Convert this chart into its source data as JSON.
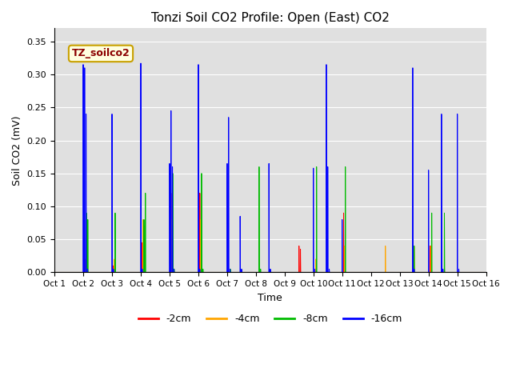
{
  "title": "Tonzi Soil CO2 Profile: Open (East) CO2",
  "ylabel": "Soil CO2 (mV)",
  "xlabel": "Time",
  "watermark_text": "TZ_soilco2",
  "ylim": [
    0.0,
    0.37
  ],
  "yticks": [
    0.0,
    0.05,
    0.1,
    0.15,
    0.2,
    0.25,
    0.3,
    0.35
  ],
  "colors": {
    "-2cm": "#ff0000",
    "-4cm": "#ffa500",
    "-8cm": "#00bb00",
    "-16cm": "#0000ff"
  },
  "legend_labels": [
    "-2cm",
    "-4cm",
    "-8cm",
    "-16cm"
  ],
  "axes_facecolor": "#e0e0e0",
  "tick_labels": [
    "Oct 1",
    "Oct 2",
    "Oct 3",
    "Oct 4",
    "Oct 5",
    "Oct 6",
    "Oct 7",
    "Oct 8",
    "Oct 9",
    "Oct 10",
    "Oct 11",
    "Oct 12",
    "Oct 13",
    "Oct 14",
    "Oct 15",
    "Oct 16"
  ],
  "num_points": 3000,
  "xlim": [
    1.0,
    16.0
  ],
  "spikes": {
    "-2cm": [
      [
        2.05,
        0.01
      ],
      [
        2.1,
        0.01
      ],
      [
        2.15,
        0.005
      ],
      [
        3.05,
        0.01
      ],
      [
        3.1,
        0.005
      ],
      [
        4.05,
        0.045
      ],
      [
        4.1,
        0.04
      ],
      [
        5.05,
        0.12
      ],
      [
        5.1,
        0.11
      ],
      [
        5.15,
        0.005
      ],
      [
        6.05,
        0.12
      ],
      [
        6.1,
        0.005
      ],
      [
        9.5,
        0.04
      ],
      [
        9.55,
        0.035
      ],
      [
        11.05,
        0.09
      ],
      [
        11.1,
        0.005
      ],
      [
        14.05,
        0.04
      ],
      [
        14.55,
        0.005
      ]
    ],
    "-4cm": [
      [
        2.08,
        0.02
      ],
      [
        2.13,
        0.015
      ],
      [
        3.08,
        0.02
      ],
      [
        4.08,
        0.08
      ],
      [
        4.13,
        0.07
      ],
      [
        5.08,
        0.08
      ],
      [
        5.13,
        0.005
      ],
      [
        6.08,
        0.08
      ],
      [
        6.13,
        0.005
      ],
      [
        10.08,
        0.02
      ],
      [
        11.08,
        0.04
      ],
      [
        12.5,
        0.04
      ],
      [
        13.5,
        0.04
      ],
      [
        14.08,
        0.04
      ]
    ],
    "-8cm": [
      [
        2.11,
        0.09
      ],
      [
        2.16,
        0.08
      ],
      [
        3.11,
        0.09
      ],
      [
        4.11,
        0.08
      ],
      [
        4.16,
        0.12
      ],
      [
        5.11,
        0.15
      ],
      [
        5.16,
        0.005
      ],
      [
        6.11,
        0.15
      ],
      [
        6.16,
        0.005
      ],
      [
        7.11,
        0.005
      ],
      [
        8.11,
        0.16
      ],
      [
        8.16,
        0.005
      ],
      [
        10.11,
        0.16
      ],
      [
        11.11,
        0.16
      ],
      [
        13.5,
        0.04
      ],
      [
        14.11,
        0.09
      ],
      [
        14.55,
        0.09
      ]
    ],
    "-16cm": [
      [
        2.0,
        0.315
      ],
      [
        2.05,
        0.31
      ],
      [
        2.1,
        0.24
      ],
      [
        2.15,
        0.005
      ],
      [
        3.0,
        0.24
      ],
      [
        3.05,
        0.005
      ],
      [
        4.0,
        0.317
      ],
      [
        4.05,
        0.005
      ],
      [
        5.0,
        0.165
      ],
      [
        5.05,
        0.245
      ],
      [
        5.1,
        0.16
      ],
      [
        5.15,
        0.005
      ],
      [
        6.0,
        0.315
      ],
      [
        6.05,
        0.005
      ],
      [
        7.0,
        0.165
      ],
      [
        7.05,
        0.235
      ],
      [
        7.1,
        0.005
      ],
      [
        7.45,
        0.085
      ],
      [
        7.5,
        0.005
      ],
      [
        8.45,
        0.165
      ],
      [
        8.5,
        0.005
      ],
      [
        10.0,
        0.158
      ],
      [
        10.05,
        0.005
      ],
      [
        10.45,
        0.315
      ],
      [
        10.5,
        0.16
      ],
      [
        10.55,
        0.005
      ],
      [
        11.0,
        0.08
      ],
      [
        13.45,
        0.31
      ],
      [
        13.5,
        0.005
      ],
      [
        14.0,
        0.155
      ],
      [
        14.45,
        0.24
      ],
      [
        14.5,
        0.005
      ],
      [
        15.0,
        0.24
      ],
      [
        15.05,
        0.005
      ]
    ]
  }
}
